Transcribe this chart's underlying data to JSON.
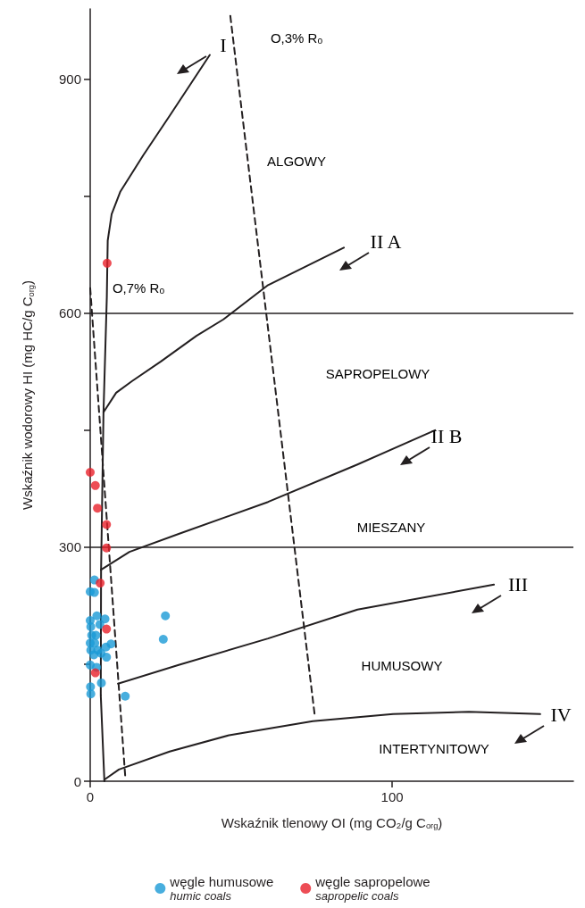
{
  "chart_data": {
    "type": "scatter",
    "xlabel": "Wskaźnik tlenowy OI (mg CO₂/g C$_{org}$)",
    "ylabel": "Wskaźnik wodorowy HI (mg HC/g C$_{org}$)",
    "xlim": [
      0,
      160
    ],
    "xticks": [
      0,
      100
    ],
    "ylim": [
      0,
      990
    ],
    "yticks": [
      0,
      {
        "value": 150,
        "label": null
      },
      300,
      {
        "value": 450,
        "label": null
      },
      600,
      {
        "value": 750,
        "label": null
      },
      900
    ],
    "legend": "bottom",
    "marker": "circle",
    "series": [
      {
        "name": "węgle humusowe\nhumic coals",
        "color": "#1a9ad6",
        "x": [
          1.4,
          0,
          1.4,
          2.2,
          4.9,
          0,
          3.2,
          0.2,
          0.5,
          1.9,
          0,
          1.5,
          6.9,
          5.2,
          0.2,
          2.5,
          3.6,
          1.2,
          5.4,
          0,
          2.1,
          3.7,
          0.1,
          0.2,
          11.6,
          24.9,
          24.2
        ],
        "values": [
          258,
          243,
          242,
          212,
          208,
          206,
          201,
          198,
          187,
          187,
          177,
          177,
          176,
          172,
          168,
          168,
          164,
          162,
          159,
          149,
          146,
          126,
          121,
          112,
          109,
          212,
          182
        ]
      },
      {
        "name": "węgle sapropelowe\nsapropelic coals",
        "color": "#e8202a",
        "x": [
          0,
          1.7,
          2.4,
          5.4,
          5.4,
          3.3,
          5.4,
          1.7,
          5.6
        ],
        "values": [
          396,
          379,
          350,
          329,
          299,
          254,
          195,
          139,
          664
        ]
      },
      {
        "type": "line",
        "color": "#231f20",
        "line_style": "solid",
        "marker": "none",
        "x": [
          4.7,
          3.5,
          3.6,
          4.4,
          5.5,
          5.8,
          7.1,
          10,
          17.5,
          26.3,
          39.6
        ],
        "values": [
          0,
          110,
          270,
          473,
          620,
          693,
          727,
          756,
          802,
          853,
          931
        ]
      },
      {
        "type": "line",
        "color": "#231f20",
        "line_style": "solid",
        "marker": "none",
        "x": [
          4.4,
          8.6,
          13.9,
          23.4,
          35.2,
          44.1,
          58.9,
          84
        ],
        "values": [
          473,
          498,
          513,
          538,
          571,
          592,
          636,
          684
        ]
      },
      {
        "type": "line",
        "color": "#231f20",
        "line_style": "solid",
        "marker": "none",
        "x": [
          3.6,
          13,
          29.3,
          58.9,
          88.5,
          114.2
        ],
        "values": [
          271,
          294,
          317,
          358,
          406,
          450
        ]
      },
      {
        "type": "line",
        "color": "#231f20",
        "line_style": "solid",
        "marker": "none",
        "x": [
          9.2,
          29.3,
          58.9,
          88.5,
          133.7
        ],
        "values": [
          125,
          149,
          183,
          220,
          252
        ]
      },
      {
        "type": "line",
        "color": "#231f20",
        "line_style": "solid",
        "marker": "none",
        "x": [
          4.7,
          9.5,
          26.3,
          46,
          73.7,
          100.3,
          125.4,
          149
        ],
        "values": [
          2,
          15,
          38,
          59,
          77,
          86,
          89,
          86
        ]
      },
      {
        "type": "line",
        "color": "#231f20",
        "line_style": "dashed",
        "marker": "none",
        "x": [
          46.4,
          74.3
        ],
        "values": [
          981,
          86
        ]
      },
      {
        "type": "line",
        "color": "#231f20",
        "line_style": "dashed",
        "marker": "none",
        "x": [
          0,
          11.6
        ],
        "values": [
          632,
          6
        ]
      }
    ],
    "ref_lines": [
      {
        "axis": "y",
        "value": 300,
        "label": null,
        "color": "#231f20"
      },
      {
        "axis": "y",
        "value": 600,
        "label": null,
        "color": "#231f20"
      }
    ],
    "annotations": [
      "I",
      "II A",
      "II B",
      "III",
      "IV",
      "O,3% Rₒ",
      "O,7% Rₒ",
      "ALGOWY",
      "SAPROPELOWY",
      "MIESZANY",
      "HUMUSOWY",
      "INTERTYNITOWY"
    ]
  }
}
